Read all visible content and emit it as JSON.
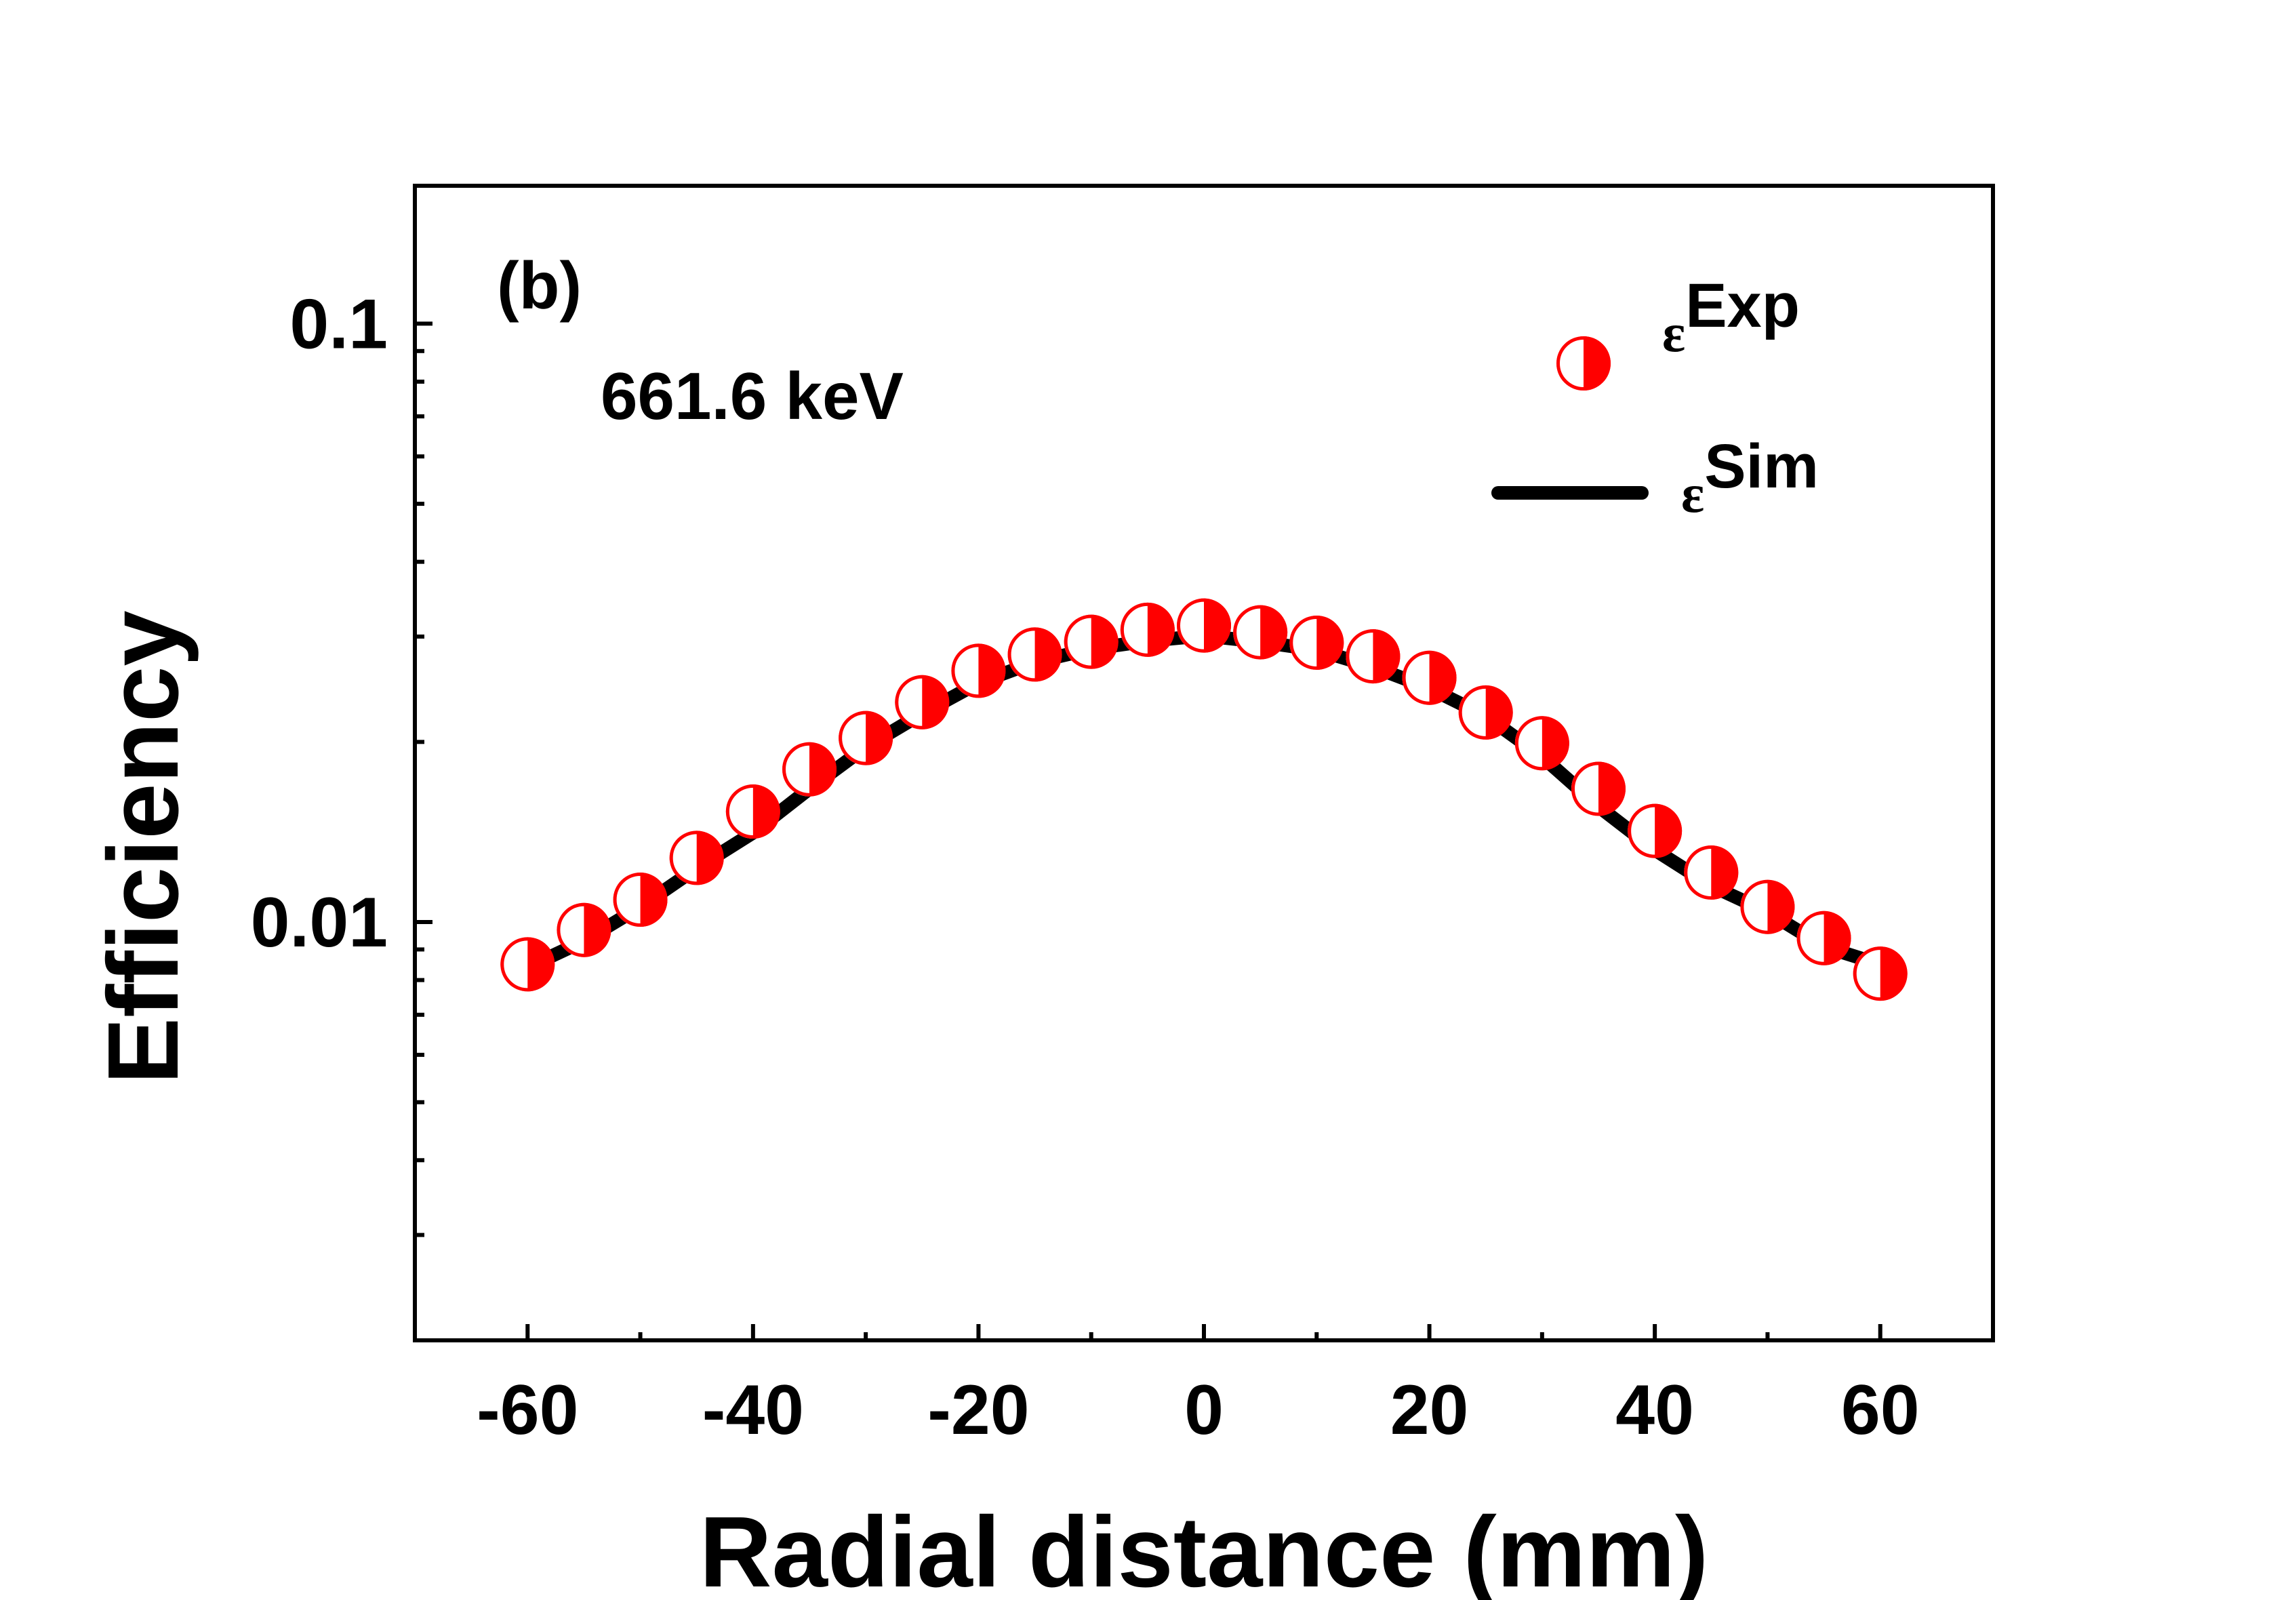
{
  "chart_data": {
    "type": "scatter",
    "title": "",
    "xlabel": "Radial distance (mm)",
    "ylabel": "Efficiency",
    "xlim": [
      -70,
      70
    ],
    "ylim": [
      0.002,
      0.17
    ],
    "yscale": "log",
    "grid": false,
    "x_ticks": [
      -60,
      -40,
      -20,
      0,
      20,
      40,
      60
    ],
    "x_tick_labels": [
      "-60",
      "-40",
      "-20",
      "0",
      "20",
      "40",
      "60"
    ],
    "y_tick_labels": [
      {
        "value": 0.1,
        "label": "0.1"
      },
      {
        "value": 0.01,
        "label": "0.01"
      }
    ],
    "annotations": [
      {
        "id": "panel",
        "text": "(b)"
      },
      {
        "id": "energy",
        "text": "661.6 keV"
      }
    ],
    "legend": {
      "placement": "top-right",
      "entries": [
        {
          "series": "exp",
          "symbol": "ε",
          "label": "Exp"
        },
        {
          "series": "sim",
          "symbol": "ε",
          "label": "Sim"
        }
      ]
    },
    "series": [
      {
        "name": "exp",
        "label": "εExp",
        "style": "half-filled-circle",
        "color": "#ff0000",
        "x": [
          -60,
          -55,
          -50,
          -45,
          -40,
          -35,
          -30,
          -25,
          -20,
          -15,
          -10,
          -5,
          0,
          5,
          10,
          15,
          20,
          25,
          30,
          35,
          40,
          45,
          50,
          55,
          60
        ],
        "values": [
          0.0085,
          0.0097,
          0.0109,
          0.0128,
          0.0153,
          0.018,
          0.0203,
          0.0233,
          0.0263,
          0.028,
          0.0294,
          0.0308,
          0.0313,
          0.0305,
          0.0293,
          0.0278,
          0.0256,
          0.0224,
          0.0199,
          0.0167,
          0.0142,
          0.0121,
          0.0106,
          0.0094,
          0.0082
        ]
      },
      {
        "name": "sim",
        "label": "εSim",
        "style": "line",
        "color": "#000000",
        "x": [
          -60,
          -55,
          -50,
          -45,
          -40,
          -35,
          -30,
          -25,
          -20,
          -15,
          -10,
          -5,
          0,
          5,
          10,
          15,
          20,
          25,
          30,
          35,
          40,
          45,
          50,
          55,
          60
        ],
        "values": [
          0.0084,
          0.0093,
          0.0106,
          0.0123,
          0.0141,
          0.0167,
          0.0196,
          0.0223,
          0.0251,
          0.0272,
          0.0286,
          0.0295,
          0.0301,
          0.0294,
          0.0285,
          0.0267,
          0.0246,
          0.0221,
          0.0189,
          0.0156,
          0.0132,
          0.0115,
          0.0104,
          0.0091,
          0.0085
        ]
      }
    ]
  }
}
